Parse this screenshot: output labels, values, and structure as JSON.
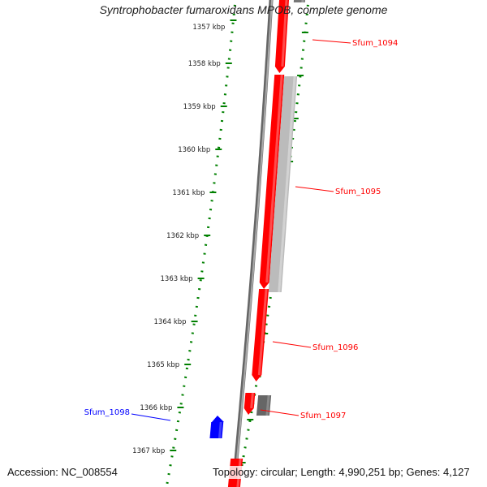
{
  "title": "Syntrophobacter fumaroxidans MPOB, complete genome",
  "accession": "Accession: NC_008554",
  "topology": "Topology: circular; Length: 4,990,251 bp; Genes: 4,127",
  "ticks": [
    "1357 kbp",
    "1358 kbp",
    "1359 kbp",
    "1360 kbp",
    "1361 kbp",
    "1362 kbp",
    "1363 kbp",
    "1364 kbp",
    "1365 kbp",
    "1366 kbp",
    "1367 kbp"
  ],
  "genes": [
    {
      "label": "Sfum_1094",
      "color": "#ff0000"
    },
    {
      "label": "Sfum_1095",
      "color": "#ff0000"
    },
    {
      "label": "Sfum_1096",
      "color": "#ff0000"
    },
    {
      "label": "Sfum_1097",
      "color": "#ff0000"
    },
    {
      "label": "Sfum_1098",
      "color": "#0000ff"
    }
  ],
  "colors": {
    "tick": "#008000",
    "backbone": "#808080",
    "forward": "#ff0000",
    "reverse": "#0000ff",
    "other": "#808080"
  }
}
